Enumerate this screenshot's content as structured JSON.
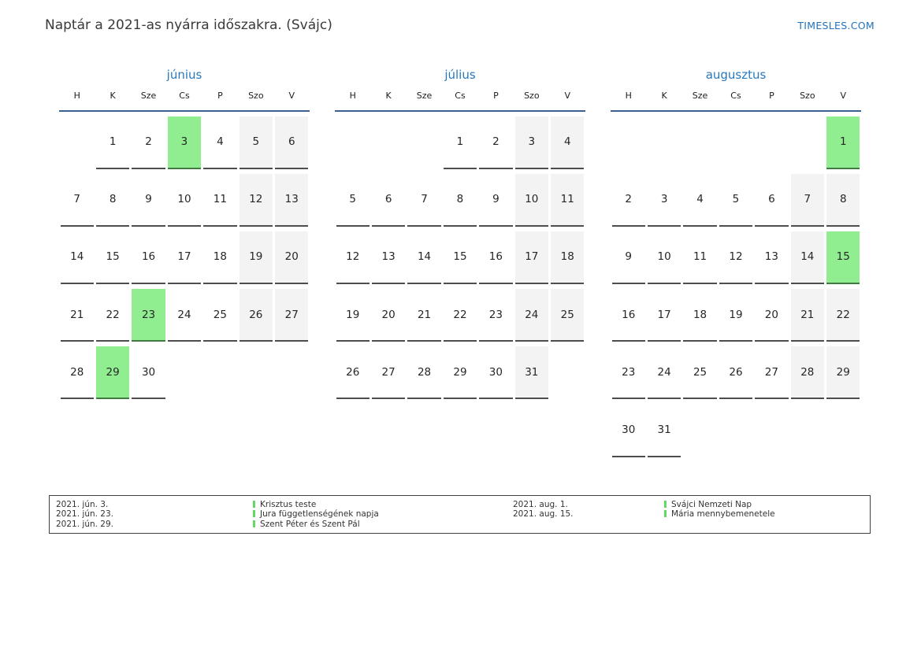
{
  "header": {
    "title": "Naptár a 2021-as nyárra időszakra. (Svájc)",
    "site": "TIMESLES.COM"
  },
  "colors": {
    "month_title_blue": "#2878be",
    "header_line_blue": "#3c6191",
    "link_blue": "#2273bb",
    "holiday_green": "#90ee90",
    "weekend_gray": "#f3f3f3",
    "underline_gray": "#4d4d4d",
    "legend_bar_green": "#62d962"
  },
  "calendar": {
    "weekday_headers": [
      "H",
      "K",
      "Sze",
      "Cs",
      "P",
      "Szo",
      "V"
    ],
    "months": [
      {
        "id": "junius",
        "name": "június",
        "weeks": [
          [
            null,
            {
              "d": 1,
              "t": "n"
            },
            {
              "d": 2,
              "t": "n"
            },
            {
              "d": 3,
              "t": "h"
            },
            {
              "d": 4,
              "t": "n"
            },
            {
              "d": 5,
              "t": "w"
            },
            {
              "d": 6,
              "t": "w"
            }
          ],
          [
            {
              "d": 7,
              "t": "n"
            },
            {
              "d": 8,
              "t": "n"
            },
            {
              "d": 9,
              "t": "n"
            },
            {
              "d": 10,
              "t": "n"
            },
            {
              "d": 11,
              "t": "n"
            },
            {
              "d": 12,
              "t": "w"
            },
            {
              "d": 13,
              "t": "w"
            }
          ],
          [
            {
              "d": 14,
              "t": "n"
            },
            {
              "d": 15,
              "t": "n"
            },
            {
              "d": 16,
              "t": "n"
            },
            {
              "d": 17,
              "t": "n"
            },
            {
              "d": 18,
              "t": "n"
            },
            {
              "d": 19,
              "t": "w"
            },
            {
              "d": 20,
              "t": "w"
            }
          ],
          [
            {
              "d": 21,
              "t": "n"
            },
            {
              "d": 22,
              "t": "n"
            },
            {
              "d": 23,
              "t": "h"
            },
            {
              "d": 24,
              "t": "n"
            },
            {
              "d": 25,
              "t": "n"
            },
            {
              "d": 26,
              "t": "w"
            },
            {
              "d": 27,
              "t": "w"
            }
          ],
          [
            {
              "d": 28,
              "t": "n"
            },
            {
              "d": 29,
              "t": "h"
            },
            {
              "d": 30,
              "t": "n"
            },
            null,
            null,
            null,
            null
          ]
        ]
      },
      {
        "id": "julius",
        "name": "július",
        "weeks": [
          [
            null,
            null,
            null,
            {
              "d": 1,
              "t": "n"
            },
            {
              "d": 2,
              "t": "n"
            },
            {
              "d": 3,
              "t": "w"
            },
            {
              "d": 4,
              "t": "w"
            }
          ],
          [
            {
              "d": 5,
              "t": "n"
            },
            {
              "d": 6,
              "t": "n"
            },
            {
              "d": 7,
              "t": "n"
            },
            {
              "d": 8,
              "t": "n"
            },
            {
              "d": 9,
              "t": "n"
            },
            {
              "d": 10,
              "t": "w"
            },
            {
              "d": 11,
              "t": "w"
            }
          ],
          [
            {
              "d": 12,
              "t": "n"
            },
            {
              "d": 13,
              "t": "n"
            },
            {
              "d": 14,
              "t": "n"
            },
            {
              "d": 15,
              "t": "n"
            },
            {
              "d": 16,
              "t": "n"
            },
            {
              "d": 17,
              "t": "w"
            },
            {
              "d": 18,
              "t": "w"
            }
          ],
          [
            {
              "d": 19,
              "t": "n"
            },
            {
              "d": 20,
              "t": "n"
            },
            {
              "d": 21,
              "t": "n"
            },
            {
              "d": 22,
              "t": "n"
            },
            {
              "d": 23,
              "t": "n"
            },
            {
              "d": 24,
              "t": "w"
            },
            {
              "d": 25,
              "t": "w"
            }
          ],
          [
            {
              "d": 26,
              "t": "n"
            },
            {
              "d": 27,
              "t": "n"
            },
            {
              "d": 28,
              "t": "n"
            },
            {
              "d": 29,
              "t": "n"
            },
            {
              "d": 30,
              "t": "n"
            },
            {
              "d": 31,
              "t": "w"
            },
            null
          ]
        ]
      },
      {
        "id": "augusztus",
        "name": "augusztus",
        "weeks": [
          [
            null,
            null,
            null,
            null,
            null,
            null,
            {
              "d": 1,
              "t": "h"
            }
          ],
          [
            {
              "d": 2,
              "t": "n"
            },
            {
              "d": 3,
              "t": "n"
            },
            {
              "d": 4,
              "t": "n"
            },
            {
              "d": 5,
              "t": "n"
            },
            {
              "d": 6,
              "t": "n"
            },
            {
              "d": 7,
              "t": "w"
            },
            {
              "d": 8,
              "t": "w"
            }
          ],
          [
            {
              "d": 9,
              "t": "n"
            },
            {
              "d": 10,
              "t": "n"
            },
            {
              "d": 11,
              "t": "n"
            },
            {
              "d": 12,
              "t": "n"
            },
            {
              "d": 13,
              "t": "n"
            },
            {
              "d": 14,
              "t": "w"
            },
            {
              "d": 15,
              "t": "h"
            }
          ],
          [
            {
              "d": 16,
              "t": "n"
            },
            {
              "d": 17,
              "t": "n"
            },
            {
              "d": 18,
              "t": "n"
            },
            {
              "d": 19,
              "t": "n"
            },
            {
              "d": 20,
              "t": "n"
            },
            {
              "d": 21,
              "t": "w"
            },
            {
              "d": 22,
              "t": "w"
            }
          ],
          [
            {
              "d": 23,
              "t": "n"
            },
            {
              "d": 24,
              "t": "n"
            },
            {
              "d": 25,
              "t": "n"
            },
            {
              "d": 26,
              "t": "n"
            },
            {
              "d": 27,
              "t": "n"
            },
            {
              "d": 28,
              "t": "w"
            },
            {
              "d": 29,
              "t": "w"
            }
          ],
          [
            {
              "d": 30,
              "t": "n"
            },
            {
              "d": 31,
              "t": "n"
            },
            null,
            null,
            null,
            null,
            null
          ]
        ]
      }
    ]
  },
  "legend": {
    "groups": [
      {
        "entries": [
          {
            "date": "2021. jún. 3.",
            "name": "Krisztus teste"
          },
          {
            "date": "2021. jún. 23.",
            "name": "Jura függetlenségének napja"
          },
          {
            "date": "2021. jún. 29.",
            "name": "Szent Péter és Szent Pál"
          }
        ]
      },
      {
        "entries": [
          {
            "date": "2021. aug. 1.",
            "name": "Svájci Nemzeti Nap"
          },
          {
            "date": "2021. aug. 15.",
            "name": "Mária mennybemenetele"
          }
        ]
      }
    ]
  }
}
